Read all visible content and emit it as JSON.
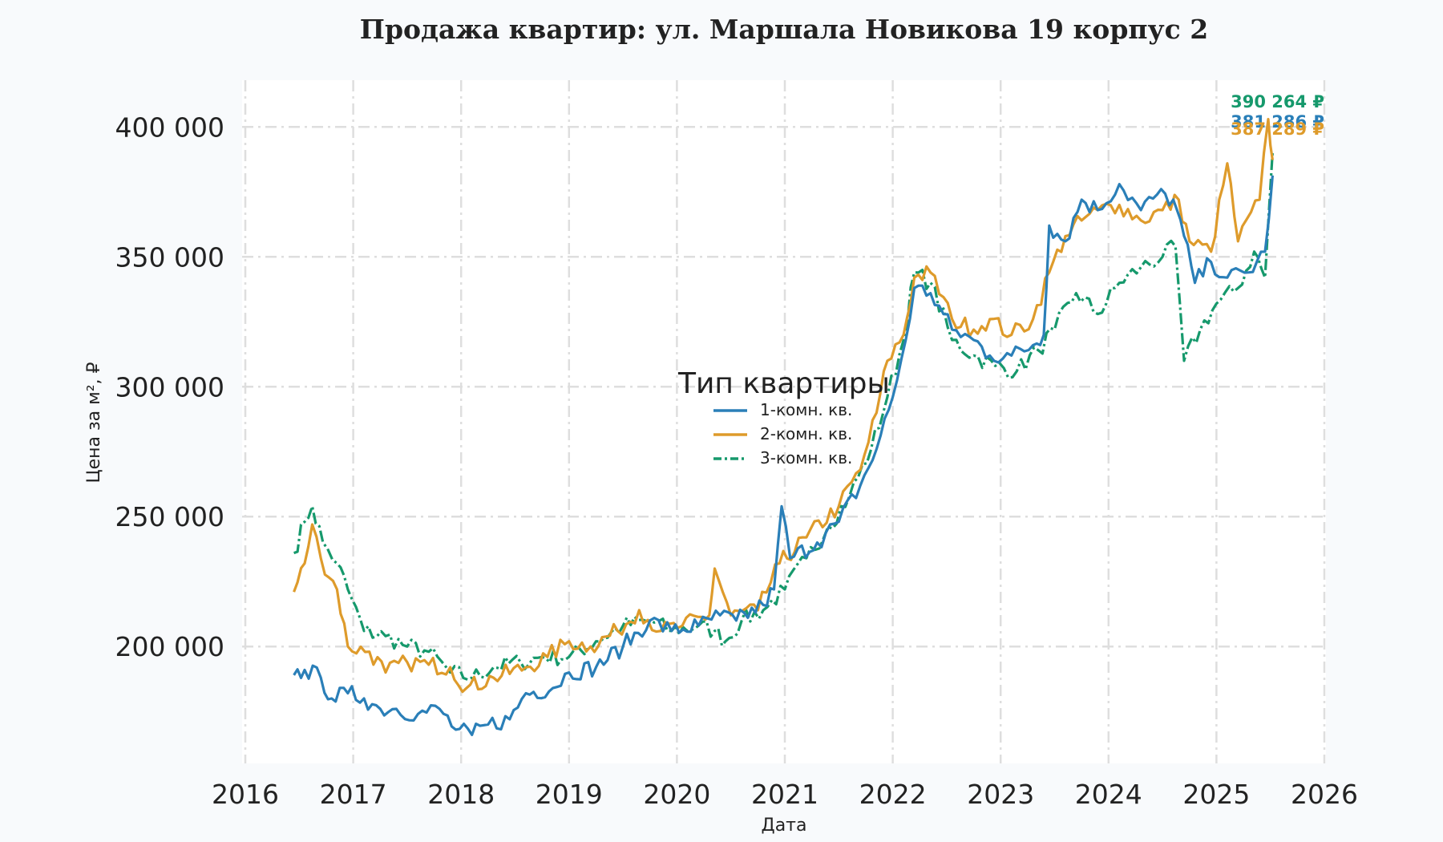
{
  "chart_data": {
    "type": "line",
    "title": "Продажа квартир: ул. Маршала Новикова 19 корпус 2",
    "xlabel": "Дата",
    "ylabel": "Цена за м², ₽",
    "xlim": [
      2016,
      2026
    ],
    "ylim": [
      155000,
      418000
    ],
    "x_ticks": [
      "2016",
      "2017",
      "2018",
      "2019",
      "2020",
      "2021",
      "2022",
      "2023",
      "2024",
      "2025",
      "2026"
    ],
    "y_ticks": [
      200000,
      250000,
      300000,
      350000,
      400000
    ],
    "y_tick_labels": [
      "200 000",
      "250 000",
      "300 000",
      "350 000",
      "400 000"
    ],
    "grid": true,
    "legend": {
      "title": "Тип квартиры",
      "placement": "center"
    },
    "series": [
      {
        "name": "1-комн. кв.",
        "color": "#2a7fb8",
        "style": "solid",
        "end_label": "381 286 ₽",
        "points": [
          [
            2016.45,
            189000
          ],
          [
            2016.55,
            191000
          ],
          [
            2016.7,
            188000
          ],
          [
            2016.8,
            180000
          ],
          [
            2016.95,
            182000
          ],
          [
            2017.1,
            180000
          ],
          [
            2017.25,
            176000
          ],
          [
            2017.4,
            176000
          ],
          [
            2017.6,
            174000
          ],
          [
            2017.8,
            176000
          ],
          [
            2017.95,
            168000
          ],
          [
            2018.1,
            166000
          ],
          [
            2018.25,
            170000
          ],
          [
            2018.45,
            172000
          ],
          [
            2018.6,
            182000
          ],
          [
            2018.85,
            184000
          ],
          [
            2019.0,
            190000
          ],
          [
            2019.25,
            192000
          ],
          [
            2019.5,
            200000
          ],
          [
            2019.75,
            210000
          ],
          [
            2019.95,
            206000
          ],
          [
            2020.2,
            208000
          ],
          [
            2020.4,
            212000
          ],
          [
            2020.55,
            210000
          ],
          [
            2020.8,
            216000
          ],
          [
            2020.9,
            222000
          ],
          [
            2020.97,
            254000
          ],
          [
            2021.05,
            234000
          ],
          [
            2021.3,
            240000
          ],
          [
            2021.5,
            248000
          ],
          [
            2021.7,
            262000
          ],
          [
            2021.85,
            276000
          ],
          [
            2022.0,
            296000
          ],
          [
            2022.12,
            318000
          ],
          [
            2022.2,
            338000
          ],
          [
            2022.35,
            336000
          ],
          [
            2022.55,
            322000
          ],
          [
            2022.75,
            318000
          ],
          [
            2022.9,
            312000
          ],
          [
            2023.1,
            312000
          ],
          [
            2023.3,
            316000
          ],
          [
            2023.4,
            320000
          ],
          [
            2023.45,
            362000
          ],
          [
            2023.6,
            356000
          ],
          [
            2023.75,
            372000
          ],
          [
            2023.9,
            368000
          ],
          [
            2024.1,
            378000
          ],
          [
            2024.3,
            368000
          ],
          [
            2024.45,
            374000
          ],
          [
            2024.6,
            372000
          ],
          [
            2024.7,
            358000
          ],
          [
            2024.8,
            340000
          ],
          [
            2024.95,
            348000
          ],
          [
            2025.1,
            342000
          ],
          [
            2025.3,
            344000
          ],
          [
            2025.45,
            352000
          ],
          [
            2025.52,
            381286
          ]
        ]
      },
      {
        "name": "2-комн. кв.",
        "color": "#de9b2b",
        "style": "solid",
        "end_label": "387 289 ₽",
        "points": [
          [
            2016.45,
            221000
          ],
          [
            2016.55,
            232000
          ],
          [
            2016.62,
            247000
          ],
          [
            2016.7,
            234000
          ],
          [
            2016.85,
            222000
          ],
          [
            2016.95,
            200000
          ],
          [
            2017.15,
            198000
          ],
          [
            2017.3,
            190000
          ],
          [
            2017.5,
            194000
          ],
          [
            2017.7,
            193000
          ],
          [
            2017.9,
            192000
          ],
          [
            2018.05,
            184000
          ],
          [
            2018.3,
            188000
          ],
          [
            2018.6,
            192000
          ],
          [
            2018.8,
            196000
          ],
          [
            2019.0,
            202000
          ],
          [
            2019.2,
            200000
          ],
          [
            2019.45,
            206000
          ],
          [
            2019.65,
            214000
          ],
          [
            2019.85,
            206000
          ],
          [
            2020.05,
            208000
          ],
          [
            2020.3,
            212000
          ],
          [
            2020.35,
            230000
          ],
          [
            2020.5,
            212000
          ],
          [
            2020.75,
            214000
          ],
          [
            2020.95,
            232000
          ],
          [
            2021.2,
            242000
          ],
          [
            2021.5,
            254000
          ],
          [
            2021.7,
            268000
          ],
          [
            2021.85,
            290000
          ],
          [
            2021.95,
            310000
          ],
          [
            2022.1,
            320000
          ],
          [
            2022.2,
            342000
          ],
          [
            2022.35,
            344000
          ],
          [
            2022.55,
            326000
          ],
          [
            2022.75,
            322000
          ],
          [
            2022.9,
            326000
          ],
          [
            2023.1,
            320000
          ],
          [
            2023.3,
            326000
          ],
          [
            2023.45,
            344000
          ],
          [
            2023.6,
            358000
          ],
          [
            2023.75,
            364000
          ],
          [
            2023.9,
            368000
          ],
          [
            2024.1,
            370000
          ],
          [
            2024.3,
            364000
          ],
          [
            2024.5,
            368000
          ],
          [
            2024.65,
            372000
          ],
          [
            2024.75,
            356000
          ],
          [
            2024.95,
            352000
          ],
          [
            2025.1,
            386000
          ],
          [
            2025.2,
            356000
          ],
          [
            2025.4,
            372000
          ],
          [
            2025.48,
            403000
          ],
          [
            2025.52,
            387289
          ]
        ]
      },
      {
        "name": "3-комн. кв.",
        "color": "#16996c",
        "style": "dashdot",
        "end_label": "390 264 ₽",
        "points": [
          [
            2016.45,
            236000
          ],
          [
            2016.55,
            248000
          ],
          [
            2016.62,
            254000
          ],
          [
            2016.72,
            240000
          ],
          [
            2016.85,
            232000
          ],
          [
            2016.95,
            222000
          ],
          [
            2017.1,
            206000
          ],
          [
            2017.3,
            204000
          ],
          [
            2017.5,
            200000
          ],
          [
            2017.7,
            198000
          ],
          [
            2017.9,
            190000
          ],
          [
            2018.1,
            188000
          ],
          [
            2018.3,
            192000
          ],
          [
            2018.55,
            194000
          ],
          [
            2018.75,
            196000
          ],
          [
            2019.0,
            196000
          ],
          [
            2019.25,
            202000
          ],
          [
            2019.5,
            208000
          ],
          [
            2019.75,
            210000
          ],
          [
            2019.95,
            206000
          ],
          [
            2020.2,
            208000
          ],
          [
            2020.35,
            206000
          ],
          [
            2020.45,
            202000
          ],
          [
            2020.6,
            210000
          ],
          [
            2020.8,
            214000
          ],
          [
            2021.0,
            222000
          ],
          [
            2021.2,
            234000
          ],
          [
            2021.4,
            246000
          ],
          [
            2021.6,
            258000
          ],
          [
            2021.8,
            276000
          ],
          [
            2021.95,
            296000
          ],
          [
            2022.1,
            318000
          ],
          [
            2022.2,
            344000
          ],
          [
            2022.35,
            340000
          ],
          [
            2022.55,
            318000
          ],
          [
            2022.75,
            312000
          ],
          [
            2022.95,
            308000
          ],
          [
            2023.15,
            306000
          ],
          [
            2023.35,
            314000
          ],
          [
            2023.5,
            322000
          ],
          [
            2023.7,
            336000
          ],
          [
            2023.9,
            328000
          ],
          [
            2024.1,
            340000
          ],
          [
            2024.3,
            346000
          ],
          [
            2024.5,
            350000
          ],
          [
            2024.62,
            354000
          ],
          [
            2024.7,
            310000
          ],
          [
            2024.85,
            322000
          ],
          [
            2025.0,
            332000
          ],
          [
            2025.2,
            338000
          ],
          [
            2025.35,
            352000
          ],
          [
            2025.45,
            342000
          ],
          [
            2025.52,
            390264
          ]
        ]
      }
    ]
  }
}
